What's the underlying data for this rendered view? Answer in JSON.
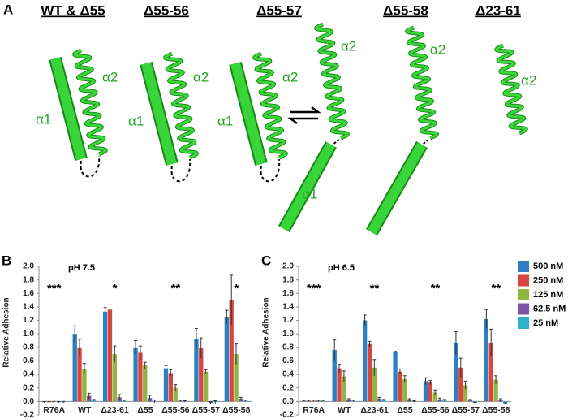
{
  "panel_a": {
    "label": "A",
    "columns": [
      {
        "title": "WT & Δ55",
        "labels": [
          "α1",
          "α2"
        ]
      },
      {
        "title": "Δ55-56",
        "labels": [
          "α1",
          "α2"
        ]
      },
      {
        "title": "Δ55-57",
        "labels": [
          "α1",
          "α2"
        ]
      },
      {
        "title": "Δ55-58",
        "labels": [
          "α2",
          "α1"
        ]
      },
      {
        "title": "Δ23-61",
        "labels": [
          "α2"
        ]
      }
    ]
  },
  "chart_data": [
    {
      "type": "bar",
      "panel": "B",
      "subtitle": "pH 7.5",
      "ylabel": "Relative Adhesion",
      "categories": [
        "R76A",
        "WT",
        "Δ23-61",
        "Δ55",
        "Δ55-56",
        "Δ55-57",
        "Δ55-58"
      ],
      "significance": [
        "***",
        null,
        "*",
        null,
        "**",
        null,
        "*"
      ],
      "ylim": [
        -0.2,
        2.0
      ],
      "yticks": [
        -0.2,
        {
          "value": 0,
          "label": "0.0"
        },
        0.2,
        0.4,
        0.6,
        0.8,
        {
          "value": 1,
          "label": "1.0"
        },
        1.2,
        1.4,
        1.6,
        1.8,
        {
          "value": 2,
          "label": "2.0"
        }
      ],
      "legend": false,
      "series": [
        {
          "color": "#2e7fc1",
          "values": [
            -0.01,
            1.0,
            1.33,
            0.8,
            0.49,
            0.93,
            1.25
          ],
          "errors": [
            0.01,
            0.12,
            0.06,
            0.1,
            0.04,
            0.15,
            0.1
          ]
        },
        {
          "color": "#d9453f",
          "values": [
            -0.01,
            0.8,
            1.36,
            0.72,
            0.42,
            0.79,
            1.5
          ],
          "errors": [
            0.01,
            0.12,
            0.07,
            0.1,
            0.05,
            0.15,
            0.37
          ]
        },
        {
          "color": "#8fb543",
          "values": [
            -0.01,
            0.48,
            0.7,
            0.53,
            0.2,
            0.44,
            0.7
          ],
          "errors": [
            0.01,
            0.08,
            0.12,
            0.05,
            0.05,
            0.03,
            0.15
          ]
        },
        {
          "color": "#7b56a6",
          "values": [
            -0.01,
            0.08,
            0.06,
            0.05,
            0.01,
            -0.02,
            0.04
          ],
          "errors": [
            0.01,
            0.04,
            0.04,
            0.04,
            0.01,
            0.02,
            0.02
          ]
        },
        {
          "color": "#2fb3cc",
          "values": [
            -0.01,
            0.02,
            0.01,
            0.0,
            0.0,
            -0.01,
            0.01
          ],
          "errors": [
            0.01,
            0.01,
            0.01,
            0.02,
            0.01,
            0.02,
            0.01
          ]
        }
      ]
    },
    {
      "type": "bar",
      "panel": "C",
      "subtitle": "pH 6.5",
      "ylabel": "Relative Adhesion",
      "categories": [
        "R76A",
        "WT",
        "Δ23-61",
        "Δ55",
        "Δ55-56",
        "Δ55-57",
        "Δ55-58"
      ],
      "significance": [
        "***",
        null,
        "**",
        null,
        "**",
        null,
        "**"
      ],
      "ylim": [
        -0.2,
        2.0
      ],
      "yticks": [
        -0.2,
        {
          "value": 0,
          "label": "0.0"
        },
        0.2,
        0.4,
        0.6,
        0.8,
        {
          "value": 1,
          "label": "1.0"
        },
        1.2,
        1.4,
        1.6,
        1.8,
        {
          "value": 2,
          "label": "2.0"
        }
      ],
      "legend": "right",
      "series": [
        {
          "name": "500 nM",
          "color": "#2e7fc1",
          "values": [
            0.01,
            0.76,
            1.2,
            0.73,
            0.3,
            0.86,
            1.22
          ],
          "errors": [
            0.01,
            0.15,
            0.08,
            0.01,
            0.05,
            0.17,
            0.14
          ]
        },
        {
          "name": "250 nM",
          "color": "#d9453f",
          "values": [
            0.01,
            0.49,
            0.85,
            0.44,
            0.28,
            0.5,
            0.87
          ],
          "errors": [
            0.01,
            0.06,
            0.04,
            0.04,
            0.03,
            0.14,
            0.2
          ]
        },
        {
          "name": "125 nM",
          "color": "#8fb543",
          "values": [
            0.01,
            0.37,
            0.5,
            0.33,
            0.13,
            0.24,
            0.32
          ],
          "errors": [
            0.01,
            0.08,
            0.12,
            0.05,
            0.04,
            0.06,
            0.06
          ]
        },
        {
          "name": "62.5 nM",
          "color": "#7b56a6",
          "values": [
            0.01,
            0.02,
            0.04,
            0.02,
            0.03,
            0.02,
            0.02
          ],
          "errors": [
            0.01,
            0.02,
            0.02,
            0.02,
            0.02,
            0.01,
            0.02
          ]
        },
        {
          "name": "25 nM",
          "color": "#2fb3cc",
          "values": [
            0.01,
            0.01,
            0.02,
            0.0,
            0.02,
            -0.02,
            -0.03
          ],
          "errors": [
            0.01,
            0.01,
            0.01,
            0.01,
            0.01,
            0.01,
            0.01
          ]
        }
      ]
    }
  ]
}
